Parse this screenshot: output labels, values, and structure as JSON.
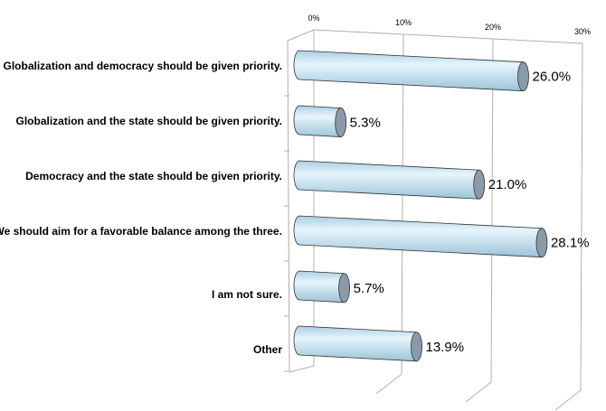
{
  "chart_data": {
    "type": "bar",
    "orientation": "horizontal",
    "style": "3d-cylinder",
    "categories": [
      "Globalization and democracy should be given priority.",
      "Globalization and the state should be given priority.",
      "Democracy and the state should be given priority.",
      "We should aim for a favorable balance among the three.",
      "I am not sure.",
      "Other"
    ],
    "values": [
      26.0,
      5.3,
      21.0,
      28.1,
      5.7,
      13.9
    ],
    "data_labels": [
      "26.0%",
      "5.3%",
      "21.0%",
      "28.1%",
      "5.7%",
      "13.9%"
    ],
    "xticks": [
      "0%",
      "10%",
      "20%",
      "30%"
    ],
    "xlim": [
      0,
      30
    ],
    "title": "",
    "xlabel": "",
    "ylabel": "",
    "grid": true,
    "colors": {
      "bar": "#c9e6f5",
      "cap": "#8a9aa8",
      "grid": "#b0b0b0"
    }
  }
}
